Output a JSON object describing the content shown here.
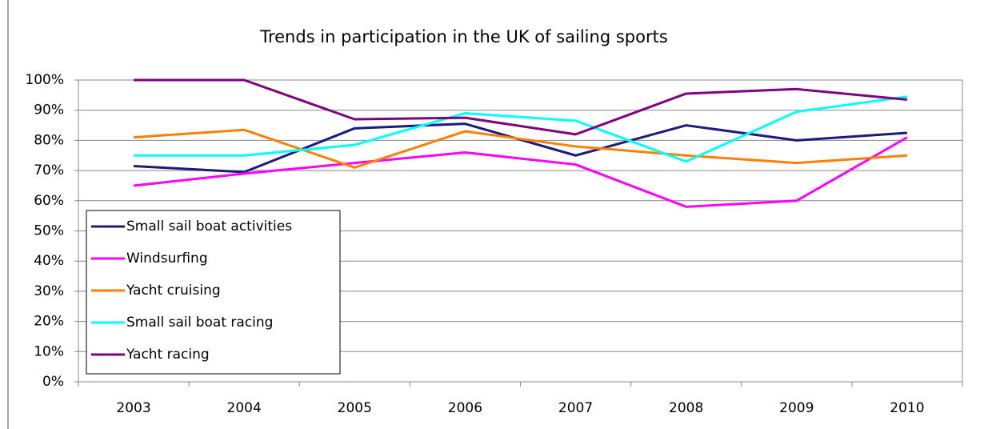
{
  "chart_data": {
    "type": "line",
    "title": "Trends in participation in the UK of sailing sports",
    "categories": [
      "2003",
      "2004",
      "2005",
      "2006",
      "2007",
      "2008",
      "2009",
      "2010"
    ],
    "series": [
      {
        "name": "Small sail boat activities",
        "color": "#1a1a80",
        "values": [
          71.5,
          69.5,
          84,
          85.5,
          75,
          85,
          80,
          82.5
        ]
      },
      {
        "name": "Windsurfing",
        "color": "#ff00ff",
        "values": [
          65,
          69,
          72.5,
          76,
          72,
          58,
          60,
          81
        ]
      },
      {
        "name": "Yacht cruising",
        "color": "#ff8000",
        "values": [
          81,
          83.5,
          71,
          83,
          78,
          75,
          72.5,
          75
        ]
      },
      {
        "name": "Small sail boat racing",
        "color": "#00ffff",
        "values": [
          75,
          75,
          78.5,
          89,
          86.5,
          73,
          89.5,
          94.5
        ]
      },
      {
        "name": "Yacht racing",
        "color": "#800080",
        "values": [
          100,
          100,
          87,
          87.5,
          82,
          95.5,
          97,
          93.5
        ]
      }
    ],
    "ylim": [
      0,
      100
    ],
    "yticks": [
      {
        "value": 0,
        "label": "0%"
      },
      {
        "value": 10,
        "label": "10%"
      },
      {
        "value": 20,
        "label": "20%"
      },
      {
        "value": 30,
        "label": "30%"
      },
      {
        "value": 40,
        "label": "40%"
      },
      {
        "value": 50,
        "label": "50%"
      },
      {
        "value": 60,
        "label": "60%"
      },
      {
        "value": 70,
        "label": "70%"
      },
      {
        "value": 80,
        "label": "80%"
      },
      {
        "value": 90,
        "label": "90%"
      },
      {
        "value": 100,
        "label": "100%"
      }
    ],
    "grid": true,
    "legend": "lower left"
  }
}
